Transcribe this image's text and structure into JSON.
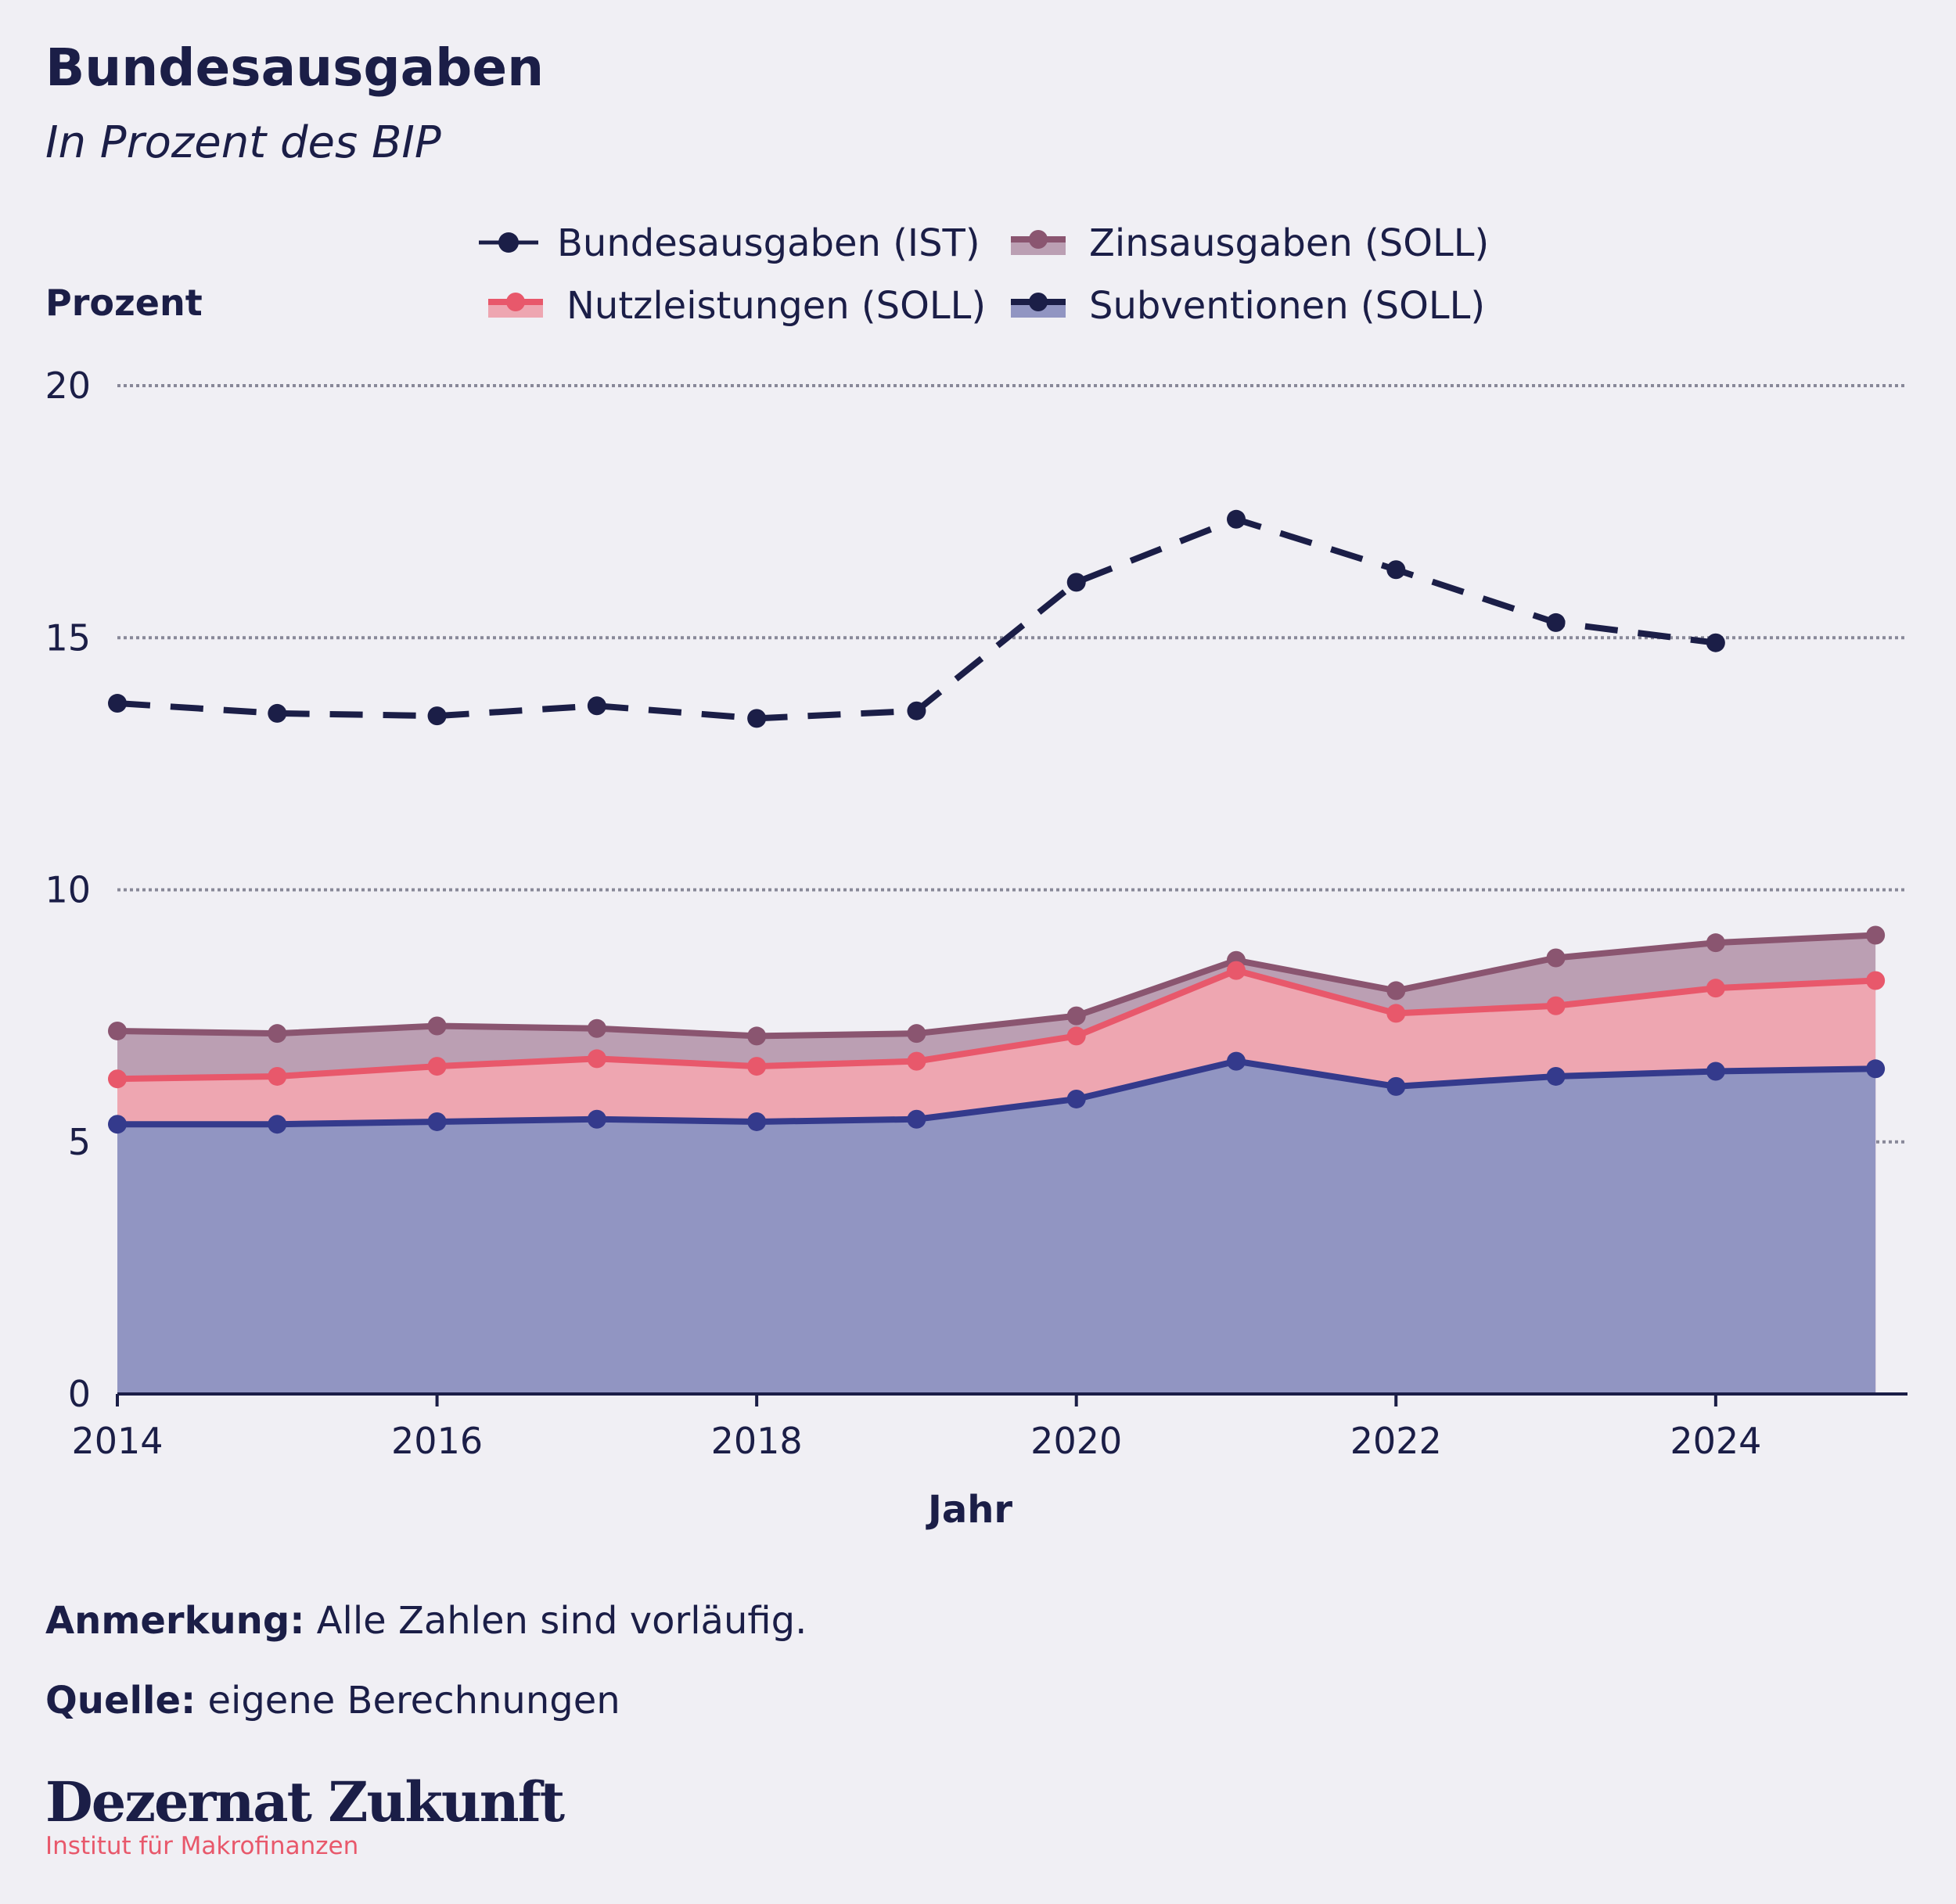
{
  "header": {
    "title": "Bundesausgaben",
    "subtitle": "In Prozent des BIP",
    "y_unit": "Prozent"
  },
  "colors": {
    "background": "#f0eff4",
    "text": "#1b1e47",
    "ist_line": "#1b1e47",
    "zins_line": "#8a5570",
    "zins_fill": "#bb9fb3",
    "nutz_line": "#e8586b",
    "nutz_fill": "#eea6b1",
    "subv_line": "#343a8c",
    "subv_fill": "#9195c2",
    "grid": "#888898",
    "accent": "#e8586b"
  },
  "chart_data": {
    "type": "area",
    "x": [
      2014,
      2015,
      2016,
      2017,
      2018,
      2019,
      2020,
      2021,
      2022,
      2023,
      2024,
      2025
    ],
    "xlabel": "Jahr",
    "ylabel": "Prozent",
    "ylim": [
      0,
      20
    ],
    "xlim": [
      2014,
      2025.2
    ],
    "x_ticks": [
      "2014",
      "2016",
      "2018",
      "2020",
      "2022",
      "2024"
    ],
    "y_ticks": [
      "0",
      "5",
      "10",
      "15",
      "20"
    ],
    "grid": "horizontal dotted",
    "legend_position": "top",
    "series": [
      {
        "name": "Bundesausgaben (IST)",
        "style": "dashed line with markers",
        "values": [
          13.7,
          13.5,
          13.45,
          13.65,
          13.4,
          13.55,
          16.1,
          17.35,
          16.35,
          15.3,
          14.9,
          null
        ]
      },
      {
        "name": "Zinsausgaben (SOLL)",
        "style": "stacked area top",
        "values": [
          7.2,
          7.15,
          7.3,
          7.25,
          7.1,
          7.15,
          7.5,
          8.6,
          8.0,
          8.65,
          8.95,
          9.1
        ]
      },
      {
        "name": "Nutzleistungen (SOLL)",
        "style": "stacked area middle",
        "values": [
          6.25,
          6.3,
          6.5,
          6.65,
          6.5,
          6.6,
          7.1,
          8.4,
          7.55,
          7.7,
          8.05,
          8.2
        ]
      },
      {
        "name": "Subventionen (SOLL)",
        "style": "stacked area bottom",
        "values": [
          5.35,
          5.35,
          5.4,
          5.45,
          5.4,
          5.45,
          5.85,
          6.6,
          6.1,
          6.3,
          6.4,
          6.45
        ]
      }
    ]
  },
  "footer": {
    "note_label": "Anmerkung:",
    "note_text": " Alle Zahlen sind vorläufig.",
    "source_label": "Quelle:",
    "source_text": " eigene Berechnungen",
    "logo": "Dezernat Zukunft",
    "logo_sub": "Institut für Makrofinanzen"
  }
}
